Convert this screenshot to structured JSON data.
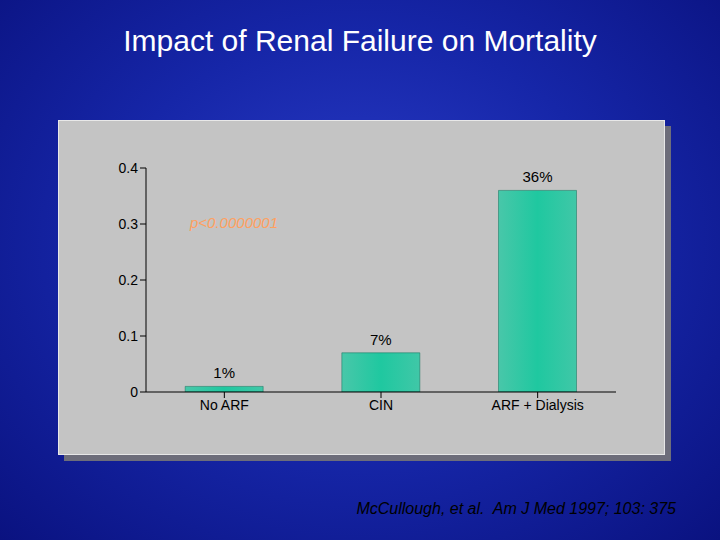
{
  "chart_data": {
    "type": "bar",
    "title": "Impact of Renal Failure on Mortality",
    "categories": [
      "No ARF",
      "CIN",
      "ARF + Dialysis"
    ],
    "values": [
      0.01,
      0.07,
      0.36
    ],
    "value_labels": [
      "1%",
      "7%",
      "36%"
    ],
    "data_labels": true,
    "color": "#1fc8a0",
    "ylim": [
      0,
      0.4
    ],
    "yticks": [
      0,
      0.1,
      0.2,
      0.3,
      0.4
    ],
    "grid": false,
    "annotations": [
      "p<0.0000001"
    ],
    "source": "McCullough, et al.  Am J Med 1997; 103: 375"
  }
}
